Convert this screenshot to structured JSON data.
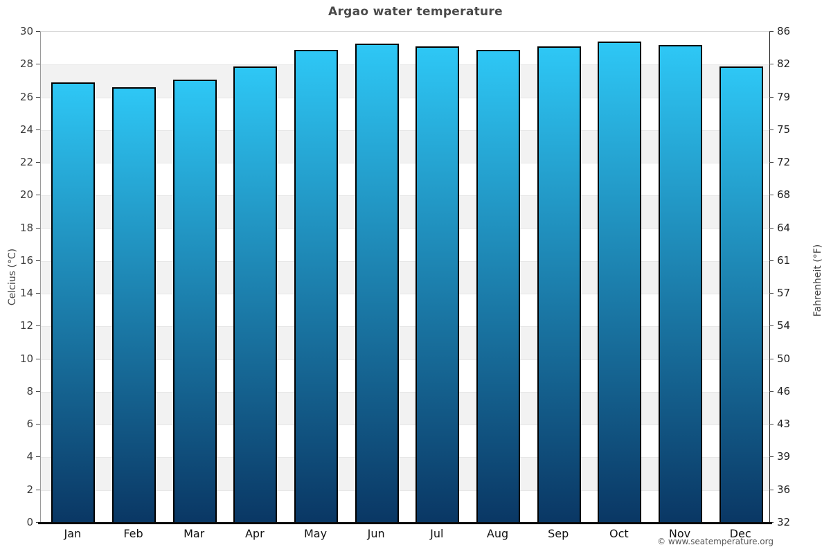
{
  "title": "Argao water temperature",
  "copyright": "© www.seatemperature.org",
  "colors": {
    "bar_gradient_top": "#2ec7f5",
    "bar_gradient_bottom": "#0a3764",
    "bar_border": "#000000",
    "band_gray": "#f2f2f2",
    "gridline": "#e7e7e7",
    "title_text": "#4a4a4a",
    "baseline": "#0a0a0a"
  },
  "chart_data": {
    "type": "bar",
    "title": "Argao water temperature",
    "xlabel": "",
    "categories": [
      "Jan",
      "Feb",
      "Mar",
      "Apr",
      "May",
      "Jun",
      "Jul",
      "Aug",
      "Sep",
      "Oct",
      "Nov",
      "Dec"
    ],
    "values": [
      26.9,
      26.6,
      27.1,
      27.9,
      28.9,
      29.3,
      29.1,
      28.9,
      29.1,
      29.4,
      29.2,
      27.9
    ],
    "unit": "°C",
    "ylim": [
      0,
      30
    ],
    "grid": "alternating horizontal bands every 2 °C, gray on 28-26, 24-22, 20-18, 16-14, 12-10, 8-6, 4-2",
    "legend": "none",
    "y_axis_left": {
      "label": "Celcius (°C)",
      "ticks": [
        30,
        28,
        26,
        24,
        22,
        20,
        18,
        16,
        14,
        12,
        10,
        8,
        6,
        4,
        2,
        0
      ]
    },
    "y_axis_right": {
      "label": "Fahrenheit (°F)",
      "ticks": [
        86,
        82,
        79,
        75,
        72,
        68,
        64,
        61,
        57,
        54,
        50,
        46,
        43,
        39,
        36,
        32
      ]
    }
  }
}
